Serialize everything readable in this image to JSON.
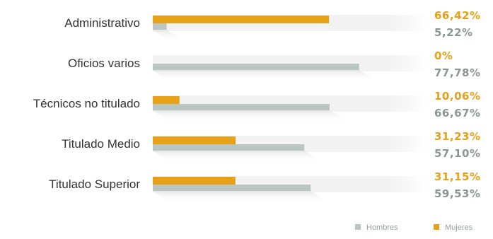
{
  "chart_data": {
    "type": "bar",
    "orientation": "horizontal",
    "categories": [
      "Administrativo",
      "Oficios varios",
      "Técnicos no titulado",
      "Titulado Medio",
      "Titulado Superior"
    ],
    "series": [
      {
        "name": "Mujeres",
        "values": [
          66.42,
          0,
          10.06,
          31.23,
          31.15
        ],
        "labels": [
          "66,42%",
          "0%",
          "10,06%",
          "31,23%",
          "31,15%"
        ],
        "color": "#e6a117"
      },
      {
        "name": "Hombres",
        "values": [
          5.22,
          77.78,
          66.67,
          57.1,
          59.53
        ],
        "labels": [
          "5,22%",
          "77,78%",
          "66,67%",
          "57,10%",
          "59,53%"
        ],
        "color": "#b9c6c2"
      }
    ],
    "xlim": [
      0,
      100
    ],
    "unit": "%",
    "legend_position": "bottom-right",
    "legend": [
      "Hombres",
      "Mujeres"
    ],
    "track_color": "#f0f0f0",
    "label_colors": {
      "Mujeres": "#e6a117",
      "Hombres": "#8c9694"
    }
  }
}
